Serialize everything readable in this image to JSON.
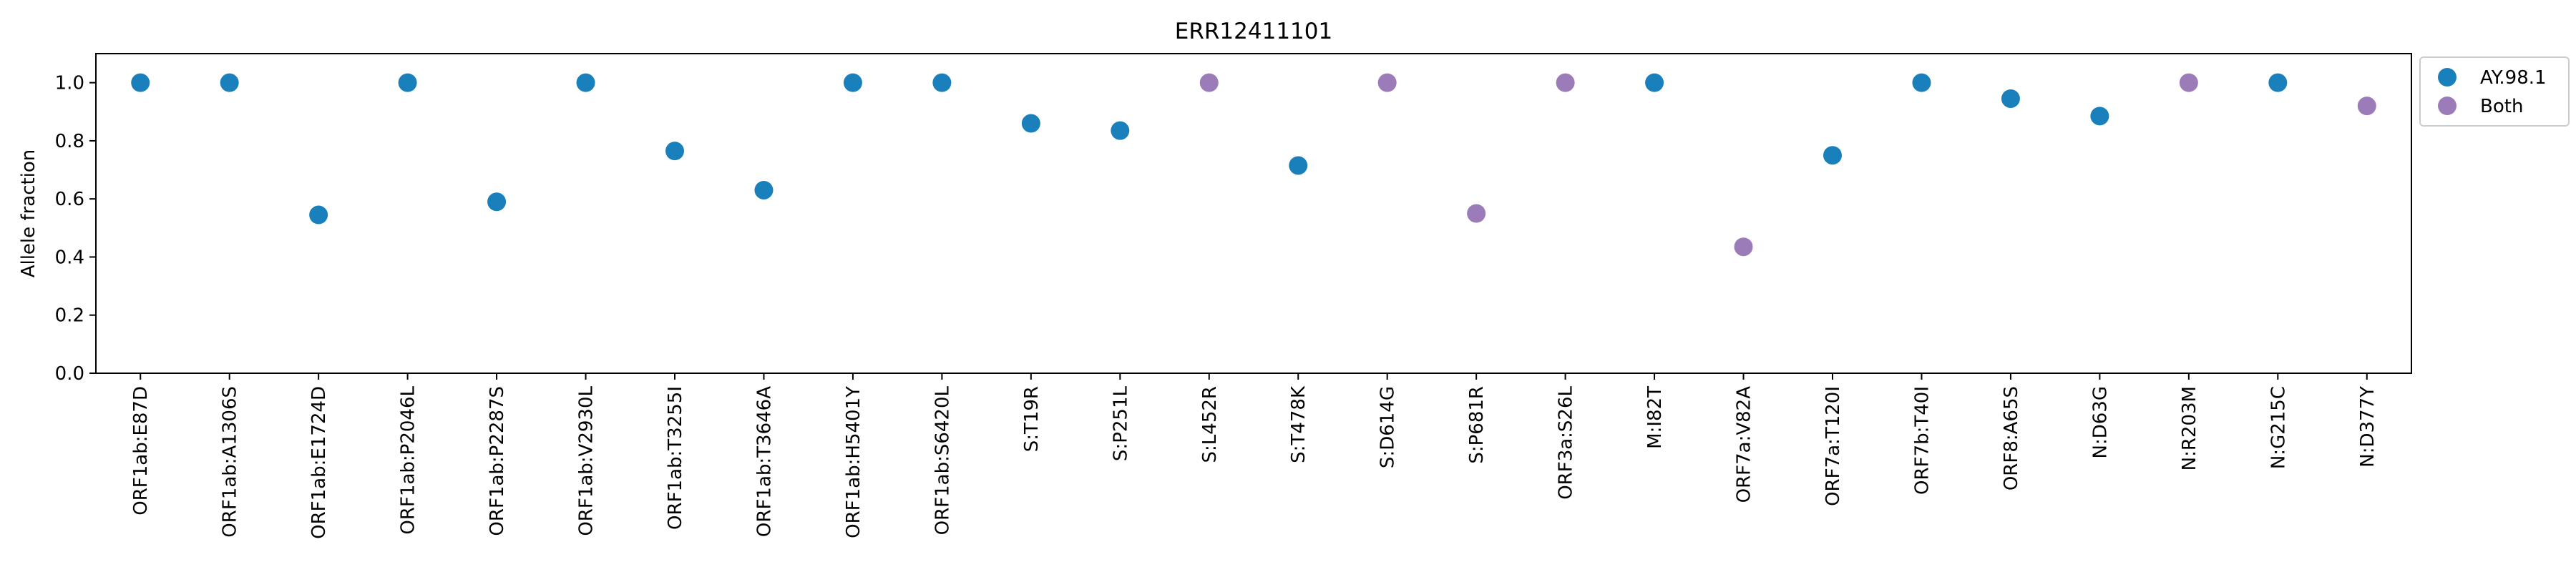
{
  "chart_data": {
    "type": "scatter",
    "title": "ERR12411101",
    "xlabel": "",
    "ylabel": "Allele fraction",
    "ylim": [
      0.0,
      1.1
    ],
    "yticks": [
      "0.0",
      "0.2",
      "0.4",
      "0.6",
      "0.8",
      "1.0"
    ],
    "grid": false,
    "legend_position": "outside-top-right",
    "categories": [
      "ORF1ab:E87D",
      "ORF1ab:A1306S",
      "ORF1ab:E1724D",
      "ORF1ab:P2046L",
      "ORF1ab:P2287S",
      "ORF1ab:V2930L",
      "ORF1ab:T3255I",
      "ORF1ab:T3646A",
      "ORF1ab:H5401Y",
      "ORF1ab:S6420L",
      "S:T19R",
      "S:P251L",
      "S:L452R",
      "S:T478K",
      "S:D614G",
      "S:P681R",
      "ORF3a:S26L",
      "M:I82T",
      "ORF7a:V82A",
      "ORF7a:T120I",
      "ORF7b:T40I",
      "ORF8:A65S",
      "N:D63G",
      "N:R203M",
      "N:G215C",
      "N:D377Y"
    ],
    "series": [
      {
        "name": "AY.98.1",
        "color": "#1a80bb",
        "points": [
          {
            "x": "ORF1ab:E87D",
            "y": 1.0
          },
          {
            "x": "ORF1ab:A1306S",
            "y": 1.0
          },
          {
            "x": "ORF1ab:E1724D",
            "y": 0.545
          },
          {
            "x": "ORF1ab:P2046L",
            "y": 1.0
          },
          {
            "x": "ORF1ab:P2287S",
            "y": 0.59
          },
          {
            "x": "ORF1ab:V2930L",
            "y": 1.0
          },
          {
            "x": "ORF1ab:T3255I",
            "y": 0.765
          },
          {
            "x": "ORF1ab:T3646A",
            "y": 0.63
          },
          {
            "x": "ORF1ab:H5401Y",
            "y": 1.0
          },
          {
            "x": "ORF1ab:S6420L",
            "y": 1.0
          },
          {
            "x": "S:T19R",
            "y": 0.86
          },
          {
            "x": "S:P251L",
            "y": 0.835
          },
          {
            "x": "S:T478K",
            "y": 0.715
          },
          {
            "x": "M:I82T",
            "y": 1.0
          },
          {
            "x": "ORF7a:T120I",
            "y": 0.75
          },
          {
            "x": "ORF7b:T40I",
            "y": 1.0
          },
          {
            "x": "ORF8:A65S",
            "y": 0.945
          },
          {
            "x": "N:D63G",
            "y": 0.885
          },
          {
            "x": "N:G215C",
            "y": 1.0
          }
        ]
      },
      {
        "name": "Both",
        "color": "#9b7bb8",
        "points": [
          {
            "x": "S:L452R",
            "y": 1.0
          },
          {
            "x": "S:D614G",
            "y": 1.0
          },
          {
            "x": "S:P681R",
            "y": 0.55
          },
          {
            "x": "ORF3a:S26L",
            "y": 1.0
          },
          {
            "x": "ORF7a:V82A",
            "y": 0.435
          },
          {
            "x": "N:R203M",
            "y": 1.0
          },
          {
            "x": "N:D377Y",
            "y": 0.92
          }
        ]
      }
    ]
  }
}
